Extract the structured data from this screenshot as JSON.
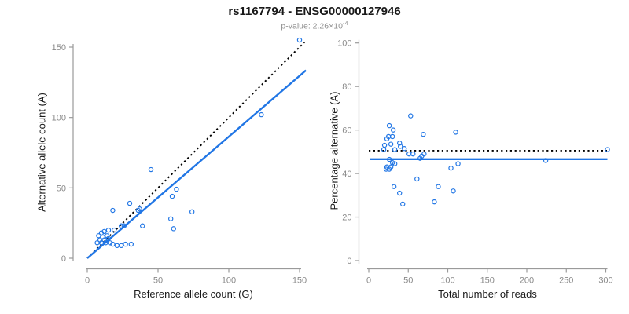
{
  "header": {
    "title": "rs1167794 - ENSG00000127946",
    "pvalue_prefix": "p-value: 2.26×10",
    "pvalue_exponent": "-4"
  },
  "colors": {
    "accent_blue": "#2176e5",
    "axis_gray": "#9a9a9a",
    "tick_label_gray": "#8a8a8a",
    "line_black": "#000000",
    "subtitle_gray": "#8f8f8f"
  },
  "chart_data": [
    {
      "type": "scatter",
      "name": "allele-counts-scatter",
      "xlabel": "Reference allele count (G)",
      "ylabel": "Alternative allele count (A)",
      "xlim": [
        0,
        155
      ],
      "ylim": [
        0,
        155
      ],
      "xticks": [
        0,
        50,
        100,
        150
      ],
      "yticks": [
        0,
        50,
        100,
        150
      ],
      "grid": false,
      "legend": null,
      "points": [
        [
          150,
          155
        ],
        [
          123,
          102
        ],
        [
          45,
          63
        ],
        [
          63,
          49
        ],
        [
          60,
          44
        ],
        [
          30,
          39
        ],
        [
          37,
          35
        ],
        [
          36,
          34
        ],
        [
          18,
          34
        ],
        [
          74,
          33
        ],
        [
          59,
          28
        ],
        [
          26,
          23
        ],
        [
          24,
          23
        ],
        [
          39,
          23
        ],
        [
          61,
          21
        ],
        [
          19,
          20
        ],
        [
          15,
          20
        ],
        [
          12,
          19
        ],
        [
          10,
          18
        ],
        [
          8,
          16
        ],
        [
          14,
          16
        ],
        [
          11,
          15
        ],
        [
          15,
          14
        ],
        [
          9,
          13
        ],
        [
          12,
          13
        ],
        [
          7,
          11
        ],
        [
          10,
          11
        ],
        [
          13,
          11
        ],
        [
          16,
          11
        ],
        [
          18,
          10
        ],
        [
          21,
          9
        ],
        [
          24,
          9
        ],
        [
          27,
          10
        ],
        [
          31,
          10
        ]
      ],
      "lines": [
        {
          "name": "identity-line",
          "style": "dotted",
          "color_key": "line_black",
          "x1": 0,
          "y1": 0,
          "x2": 153.5,
          "y2": 153.5
        },
        {
          "name": "fit-line",
          "style": "solid",
          "color_key": "accent_blue",
          "x1": 0,
          "y1": 0,
          "x2": 154.5,
          "y2": 133.5
        }
      ]
    },
    {
      "type": "scatter",
      "name": "percentage-vs-reads-scatter",
      "xlabel": "Total number of reads",
      "ylabel": "Percentage alternative (A)",
      "xlim": [
        0,
        305
      ],
      "ylim": [
        0,
        100
      ],
      "xticks": [
        0,
        50,
        100,
        150,
        200,
        250,
        300
      ],
      "yticks": [
        0,
        20,
        40,
        60,
        80,
        100
      ],
      "grid": false,
      "legend": null,
      "points": [
        [
          53,
          66.5
        ],
        [
          26,
          62
        ],
        [
          31,
          60
        ],
        [
          110,
          59
        ],
        [
          69,
          58
        ],
        [
          30,
          57
        ],
        [
          25,
          57
        ],
        [
          23,
          56
        ],
        [
          39,
          54
        ],
        [
          28,
          53.5
        ],
        [
          20,
          53
        ],
        [
          40,
          52.5
        ],
        [
          19,
          51
        ],
        [
          33,
          51
        ],
        [
          45,
          51.5
        ],
        [
          302,
          51
        ],
        [
          51,
          49
        ],
        [
          56,
          49
        ],
        [
          70,
          49
        ],
        [
          67,
          48
        ],
        [
          65,
          47
        ],
        [
          26,
          46.5
        ],
        [
          224,
          46
        ],
        [
          30,
          45
        ],
        [
          33,
          44.5
        ],
        [
          113,
          44.5
        ],
        [
          23,
          43
        ],
        [
          28,
          43
        ],
        [
          22,
          42
        ],
        [
          26,
          42
        ],
        [
          104,
          42.5
        ],
        [
          61,
          37.5
        ],
        [
          32,
          34
        ],
        [
          88,
          34
        ],
        [
          39,
          31
        ],
        [
          107,
          32
        ],
        [
          83,
          27
        ],
        [
          43,
          26
        ]
      ],
      "lines": [
        {
          "name": "fifty-percent-line",
          "style": "dotted",
          "color_key": "line_black",
          "x1": 0,
          "y1": 50.5,
          "x2": 301.5,
          "y2": 50.5
        },
        {
          "name": "mean-percentage-line",
          "style": "solid",
          "color_key": "accent_blue",
          "x1": 1,
          "y1": 46.6,
          "x2": 302,
          "y2": 46.6
        }
      ]
    }
  ]
}
